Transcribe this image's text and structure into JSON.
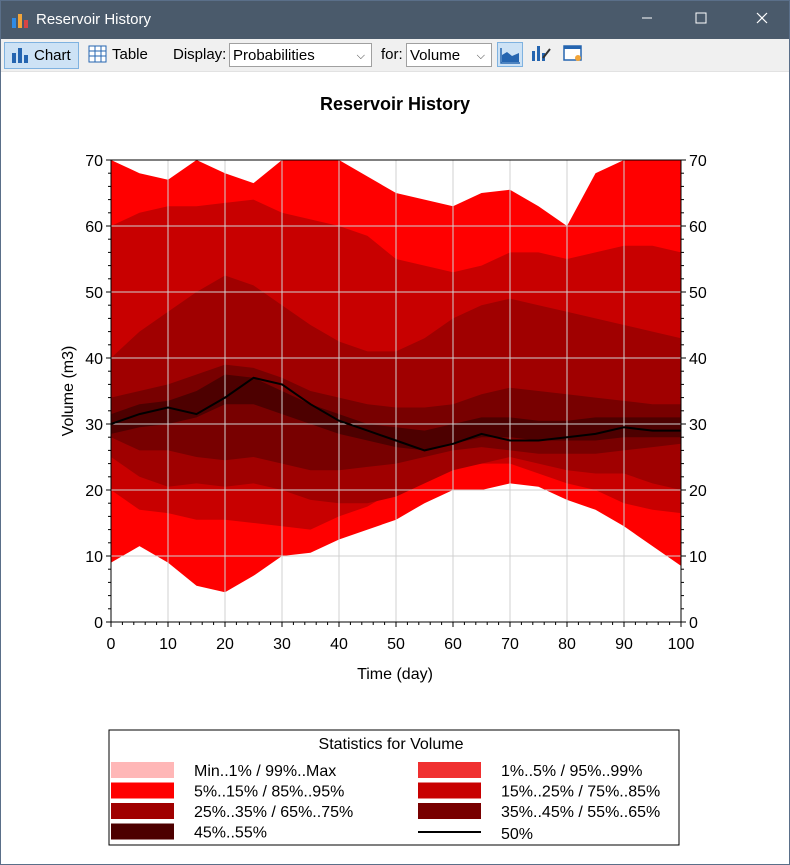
{
  "window": {
    "title": "Reservoir History"
  },
  "toolbar": {
    "chart_label": "Chart",
    "table_label": "Table",
    "display_label": "Display:",
    "display_value": "Probabilities",
    "for_label": "for:",
    "for_value": "Volume"
  },
  "chart_data": {
    "type": "area",
    "title": "Reservoir History",
    "xlabel": "Time (day)",
    "ylabel": "Volume (m3)",
    "xlim": [
      0,
      100
    ],
    "ylim": [
      0,
      70
    ],
    "x_ticks": [
      "0",
      "10",
      "20",
      "30",
      "40",
      "50",
      "60",
      "70",
      "80",
      "90",
      "100"
    ],
    "y_ticks": [
      "0",
      "10",
      "20",
      "30",
      "40",
      "50",
      "60",
      "70"
    ],
    "grid": true,
    "legend_title": "Statistics for Volume",
    "legend_position": "bottom",
    "x": [
      0,
      5,
      10,
      15,
      20,
      25,
      30,
      35,
      40,
      45,
      50,
      55,
      60,
      65,
      70,
      75,
      80,
      85,
      90,
      95,
      100
    ],
    "bands": [
      {
        "name": "Min..1% / 99%..Max",
        "color": "#ffb7b7",
        "lower": [
          9,
          11.5,
          9,
          5.5,
          4.5,
          7,
          10,
          10.5,
          12.5,
          14,
          15.5,
          18,
          20,
          20,
          21,
          20.5,
          18.5,
          17,
          14.5,
          11.5,
          8.5
        ],
        "upper": [
          70,
          68,
          67,
          70,
          68,
          66.5,
          70,
          70,
          70,
          67.5,
          65,
          64,
          63,
          65,
          65.5,
          63,
          60,
          68,
          70,
          70,
          70
        ]
      },
      {
        "name": "1%..5% / 95%..99%",
        "color": "#f03030",
        "lower": [
          9,
          11.5,
          9,
          5.5,
          4.5,
          7,
          10,
          10.5,
          12.5,
          14,
          15.5,
          18,
          20,
          20,
          21,
          20.5,
          18.5,
          17,
          14.5,
          11.5,
          8.5
        ],
        "upper": [
          70,
          68,
          67,
          70,
          68,
          66.5,
          70,
          70,
          70,
          67.5,
          65,
          64,
          63,
          65,
          65.5,
          63,
          60,
          68,
          70,
          70,
          70
        ]
      },
      {
        "name": "5%..15% / 85%..95%",
        "color": "#ff0000",
        "lower": [
          9,
          11.5,
          9,
          5.5,
          4.5,
          7,
          10,
          10.5,
          12.5,
          14,
          15.5,
          18,
          20,
          20,
          21,
          20.5,
          18.5,
          17,
          14.5,
          11.5,
          8.5
        ],
        "upper": [
          70,
          68,
          67,
          70,
          68,
          66.5,
          70,
          70,
          70,
          67.5,
          65,
          64,
          63,
          65,
          65.5,
          63,
          60,
          68,
          70,
          70,
          70
        ]
      },
      {
        "name": "15%..25% / 75%..85%",
        "color": "#c80000",
        "lower": [
          20,
          17,
          16.5,
          15.5,
          15.5,
          15,
          14.5,
          14,
          16,
          17.5,
          20,
          22,
          23.5,
          24,
          24,
          22.5,
          21,
          20,
          18,
          17,
          16.5
        ],
        "upper": [
          60,
          62,
          63,
          63,
          63.5,
          64,
          62,
          61,
          60,
          58.5,
          55,
          54,
          53,
          54,
          56,
          56,
          55,
          56,
          57,
          57,
          56
        ]
      },
      {
        "name": "25%..35% / 65%..75%",
        "color": "#a00000",
        "lower": [
          25,
          22,
          20.5,
          21,
          20.5,
          21,
          20,
          18.5,
          18,
          18,
          19,
          21,
          23,
          24,
          25,
          24,
          23,
          22.5,
          22.5,
          21,
          20
        ]
      },
      {
        "name": "35%..45% / 55%..65%",
        "color": "#780000",
        "lower": [
          28,
          26,
          26,
          25,
          24.5,
          25,
          24,
          23,
          23,
          23.5,
          24,
          25,
          26,
          26.5,
          26,
          25.5,
          25.5,
          25.5,
          26,
          26.5,
          27
        ]
      },
      {
        "name": "45%..55%",
        "color": "#4d0000"
      }
    ],
    "band_uppers": {
      "25%..35% / 65%..75%": [
        40,
        44,
        47,
        50,
        52.5,
        51,
        48,
        45,
        42.5,
        41,
        41,
        43,
        46,
        48,
        49,
        48,
        47,
        46,
        45,
        44,
        43
      ],
      "35%..45% / 55%..65%": [
        34,
        35,
        36,
        37.5,
        39,
        38.5,
        37,
        35,
        34,
        33,
        32.5,
        32.5,
        33,
        34.5,
        35.5,
        35,
        34.5,
        34,
        33.5,
        33,
        33
      ],
      "45%..55%": [
        31.5,
        33,
        33.5,
        35,
        37.5,
        37,
        35,
        33,
        31.5,
        30,
        29.5,
        29,
        30,
        31,
        31,
        30.5,
        30.5,
        31,
        31,
        31,
        31
      ],
      "45%..55%_lower": [
        28.5,
        29.5,
        30,
        31,
        33,
        33,
        31.5,
        30,
        28.5,
        27.5,
        26.5,
        26,
        27,
        28,
        28,
        27.5,
        27.5,
        27.5,
        28,
        28,
        28
      ]
    },
    "series": [
      {
        "name": "50%",
        "color": "#000000",
        "values": [
          30,
          31.5,
          32.5,
          31.5,
          34,
          37,
          36,
          33,
          30.5,
          29,
          27.5,
          26,
          27,
          28.5,
          27.5,
          27.5,
          28,
          28.5,
          29.5,
          29,
          29
        ]
      }
    ]
  }
}
